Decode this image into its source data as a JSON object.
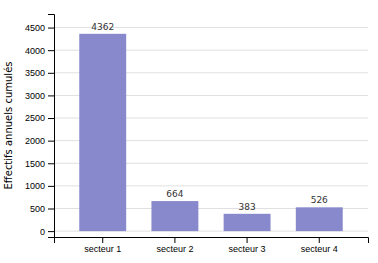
{
  "chart_data": {
    "type": "bar",
    "y_label": "Effectifs annuels cumulés",
    "categories": [
      "secteur 1",
      "secteur 2",
      "secteur 3",
      "secteur 4"
    ],
    "values": [
      4362,
      664,
      383,
      526
    ],
    "color": "#8888cc",
    "ylim": [
      -130,
      4800
    ],
    "yticks": [
      0,
      500,
      1000,
      1500,
      2000,
      2500,
      3000,
      3500,
      4000,
      4500
    ],
    "grid": true,
    "data_labels": true
  }
}
